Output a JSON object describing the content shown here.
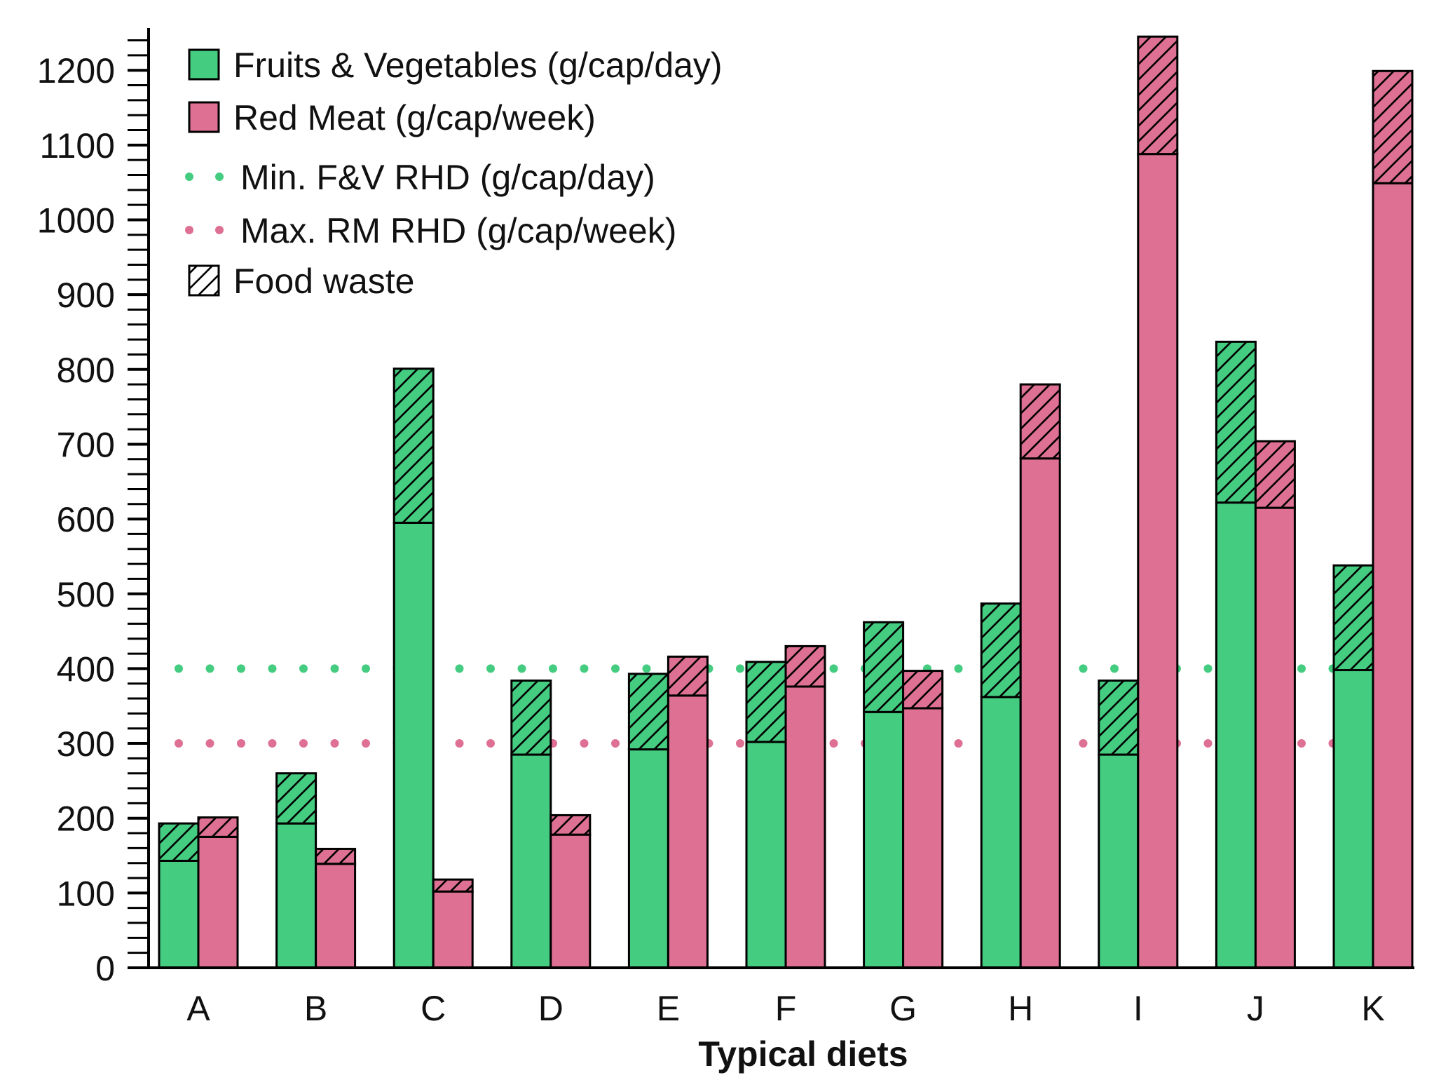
{
  "chart_data": {
    "type": "bar",
    "subtype": "grouped-stacked",
    "title": "",
    "xlabel": "Typical diets",
    "ylabel": "",
    "ylim": [
      0,
      1250
    ],
    "yticks": [
      0,
      100,
      200,
      300,
      400,
      500,
      600,
      700,
      800,
      900,
      1000,
      1100,
      1200
    ],
    "categories": [
      "A",
      "B",
      "C",
      "D",
      "E",
      "F",
      "G",
      "H",
      "I",
      "J",
      "K"
    ],
    "series": [
      {
        "name": "Fruits & Vegetables (g/cap/day)",
        "color": "#44CC80",
        "consumed": [
          143,
          193,
          595,
          285,
          292,
          302,
          342,
          362,
          285,
          622,
          398
        ],
        "total": [
          193,
          260,
          801,
          384,
          393,
          409,
          462,
          487,
          384,
          837,
          538
        ]
      },
      {
        "name": "Red Meat (g/cap/week)",
        "color": "#DE7093",
        "consumed": [
          175,
          139,
          102,
          178,
          364,
          376,
          347,
          681,
          1088,
          615,
          1049
        ],
        "total": [
          201,
          159,
          118,
          204,
          416,
          430,
          397,
          780,
          1245,
          704,
          1199
        ]
      }
    ],
    "reference_lines": [
      {
        "name": "Min. F&V RHD (g/cap/day)",
        "value": 400,
        "color": "#44CC80",
        "style": "dotted"
      },
      {
        "name": "Max. RM RHD (g/cap/week)",
        "value": 300,
        "color": "#DE7093",
        "style": "dotted"
      }
    ],
    "hatch_meaning": "Food waste",
    "legend": {
      "position": "top-left",
      "entries": [
        {
          "label": "Fruits & Vegetables (g/cap/day)",
          "kind": "box",
          "color": "#44CC80"
        },
        {
          "label": "Red Meat (g/cap/week)",
          "kind": "box",
          "color": "#DE7093"
        },
        {
          "label": "Min. F&V RHD (g/cap/day)",
          "kind": "dots",
          "color": "#44CC80"
        },
        {
          "label": "Max. RM RHD (g/cap/week)",
          "kind": "dots",
          "color": "#DE7093"
        },
        {
          "label": "Food waste",
          "kind": "hatch",
          "color": "#ffffff"
        }
      ]
    }
  }
}
